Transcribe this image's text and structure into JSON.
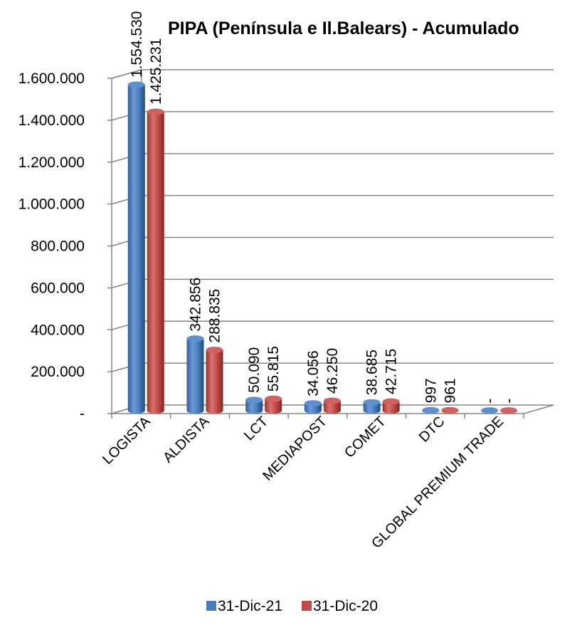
{
  "chart_data": {
    "type": "bar",
    "title": "PIPA  (Península e Il.Balears) - Acumulado",
    "categories": [
      "LOGISTA",
      "ALDISTA",
      "LCT",
      "MEDIAPOST",
      "COMET",
      "DTC",
      "GLOBAL PREMIUM TRADE"
    ],
    "series": [
      {
        "name": "31-Dic-21",
        "color": "#4a7ebb",
        "values": [
          1554530,
          342856,
          50090,
          34056,
          38685,
          997,
          0
        ],
        "labels": [
          "1.554.530",
          "342.856",
          "50.090",
          "34.056",
          "38.685",
          "997",
          "-"
        ]
      },
      {
        "name": "31-Dic-20",
        "color": "#be4b48",
        "values": [
          1425231,
          288835,
          55815,
          46250,
          42715,
          961,
          0
        ],
        "labels": [
          "1.425.231",
          "288.835",
          "55.815",
          "46.250",
          "42.715",
          "961",
          "-"
        ]
      }
    ],
    "ylim": [
      0,
      1600000
    ],
    "yticks": [
      "-",
      "200.000",
      "400.000",
      "600.000",
      "800.000",
      "1.000.000",
      "1.200.000",
      "1.400.000",
      "1.600.000"
    ],
    "xlabel": "",
    "ylabel": "",
    "grid": true,
    "legend_position": "bottom",
    "style": "3d-cylinder"
  }
}
